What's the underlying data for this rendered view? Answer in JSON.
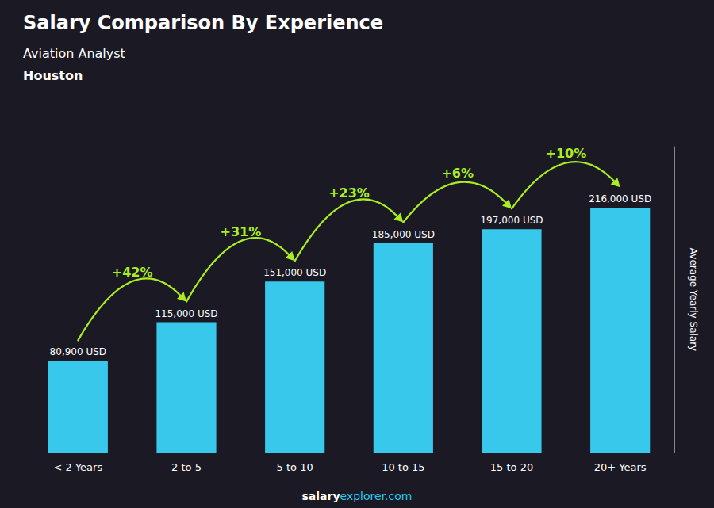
{
  "chart_data": {
    "type": "bar",
    "title": "Salary Comparison By Experience",
    "subtitle": [
      "Aviation Analyst",
      "Houston"
    ],
    "categories": [
      "< 2 Years",
      "2 to 5",
      "5 to 10",
      "10 to 15",
      "15 to 20",
      "20+ Years"
    ],
    "values": [
      80900,
      115000,
      151000,
      185000,
      197000,
      216000
    ],
    "value_labels": [
      "80,900 USD",
      "115,000 USD",
      "151,000 USD",
      "185,000 USD",
      "197,000 USD",
      "216,000 USD"
    ],
    "data_labels": true,
    "color": "#38C8EC",
    "ylabel": "Average Yearly Salary",
    "ylim": [
      0,
      270000
    ],
    "yticks": [],
    "tick_labels": "x",
    "grid": false,
    "annotations": [
      {
        "text": "+42%",
        "from": "< 2 Years",
        "to": "2 to 5",
        "color": "#AAEE22"
      },
      {
        "text": "+31%",
        "from": "2 to 5",
        "to": "5 to 10",
        "color": "#AAEE22"
      },
      {
        "text": "+23%",
        "from": "5 to 10",
        "to": "10 to 15",
        "color": "#AAEE22"
      },
      {
        "text": "+6%",
        "from": "10 to 15",
        "to": "15 to 20",
        "color": "#AAEE22"
      },
      {
        "text": "+10%",
        "from": "15 to 20",
        "to": "20+ Years",
        "color": "#AAEE22"
      },
      {
        "text": "salary",
        "color": "#FFFFFF"
      },
      {
        "text": "explorer.com",
        "color": "#22CCEE"
      }
    ]
  }
}
